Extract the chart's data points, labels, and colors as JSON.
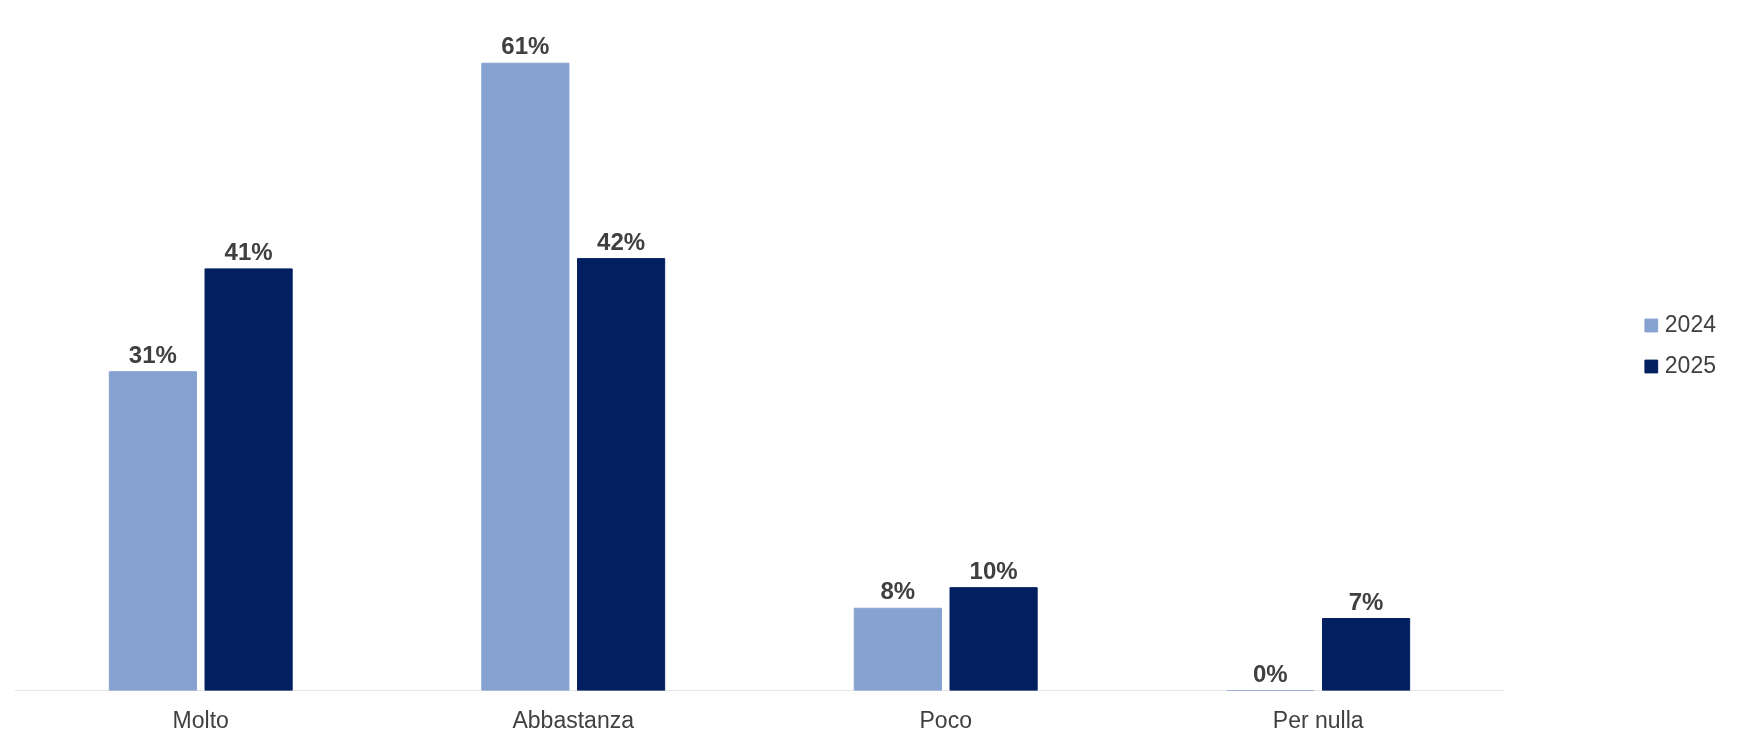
{
  "chart_data": {
    "type": "bar",
    "categories": [
      "Molto",
      "Abbastanza",
      "Poco",
      "Per nulla"
    ],
    "series": [
      {
        "name": "2024",
        "color": "#86a2d0",
        "values": [
          31,
          61,
          8,
          0
        ],
        "value_labels": [
          "31%",
          "61%",
          "8%",
          "0%"
        ]
      },
      {
        "name": "2025",
        "color": "#022060",
        "values": [
          41,
          42,
          10,
          7
        ],
        "value_labels": [
          "41%",
          "42%",
          "10%",
          "7%"
        ]
      }
    ],
    "legend": "right",
    "grid": false
  }
}
